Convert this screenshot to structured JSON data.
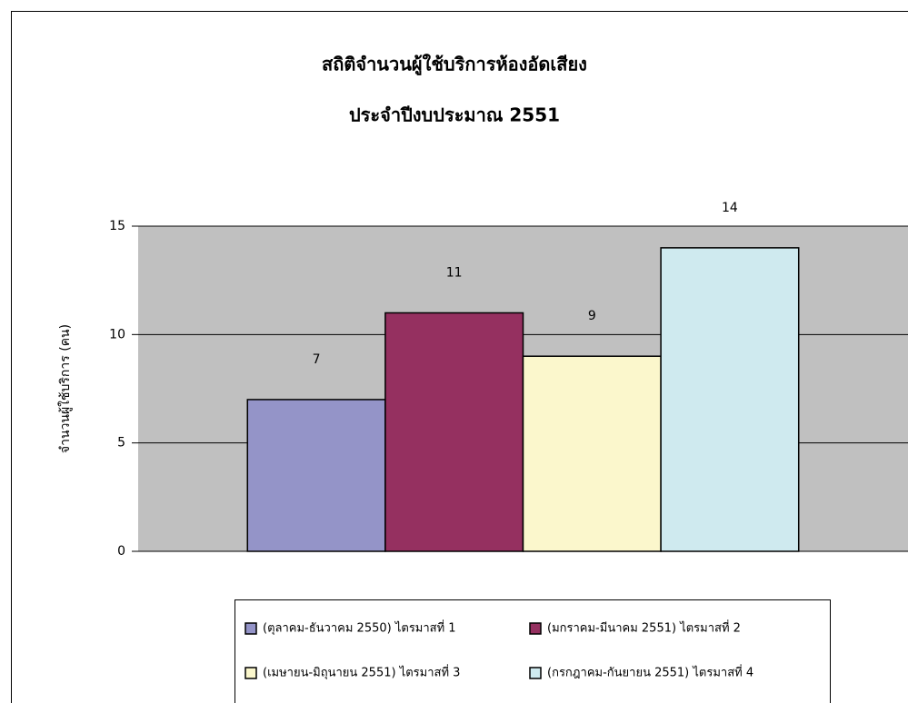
{
  "chart_data": {
    "type": "bar",
    "title": "สถิติจำนวนผู้ใช้บริการห้องอัดเสียง",
    "subtitle": "ประจำปีงบประมาณ 2551",
    "y_label": "จำนวนผู้ใช้บริการ (คน)",
    "categories": [
      null
    ],
    "series": [
      {
        "name": "(ตุลาคม-ธันวาคม 2550) ไตรมาสที่ 1",
        "color": "#9494c8",
        "values": [
          7
        ]
      },
      {
        "name": "(มกราคม-มีนาคม 2551) ไตรมาสที่ 2",
        "color": "#953060",
        "values": [
          11
        ]
      },
      {
        "name": "(เมษายน-มิถุนายน 2551) ไตรมาสที่ 3",
        "color": "#fbf7cc",
        "values": [
          9
        ]
      },
      {
        "name": "(กรกฎาคม-กันยายน 2551) ไตรมาสที่ 4",
        "color": "#cfeaef",
        "values": [
          14
        ]
      }
    ],
    "ylim": [
      0,
      15
    ],
    "yticks": [
      0,
      5,
      10,
      15
    ],
    "grid": true,
    "plot_background": "#c0c0c0",
    "legend": "bottom"
  }
}
